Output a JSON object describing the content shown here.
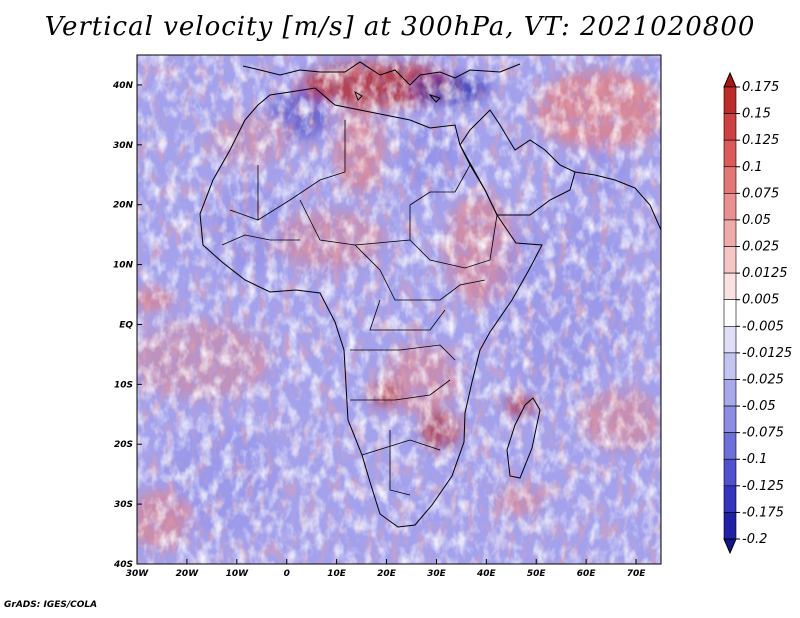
{
  "title": "Vertical velocity [m/s] at 300hPa, VT: 2021020800",
  "footer": "GrADS: IGES/COLA",
  "colors": {
    "strong_up": "#b52020",
    "up": "#e77a7a",
    "neutral": "#ffffff",
    "down": "#8c8ce8",
    "strong_down": "#2a28b0",
    "coast": "#000000"
  },
  "map": {
    "lon_range": [
      -30,
      75
    ],
    "lat_range": [
      -40,
      45
    ],
    "lat_ticks": [
      {
        "value": 40,
        "label": "40N"
      },
      {
        "value": 30,
        "label": "30N"
      },
      {
        "value": 20,
        "label": "20N"
      },
      {
        "value": 10,
        "label": "10N"
      },
      {
        "value": 0,
        "label": "EQ"
      },
      {
        "value": -10,
        "label": "10S"
      },
      {
        "value": -20,
        "label": "20S"
      },
      {
        "value": -30,
        "label": "30S"
      },
      {
        "value": -40,
        "label": "40S"
      }
    ],
    "lon_ticks": [
      {
        "value": -30,
        "label": "30W"
      },
      {
        "value": -20,
        "label": "20W"
      },
      {
        "value": -10,
        "label": "10W"
      },
      {
        "value": 0,
        "label": "0"
      },
      {
        "value": 10,
        "label": "10E"
      },
      {
        "value": 20,
        "label": "20E"
      },
      {
        "value": 30,
        "label": "30E"
      },
      {
        "value": 40,
        "label": "40E"
      },
      {
        "value": 50,
        "label": "50E"
      },
      {
        "value": 60,
        "label": "60E"
      },
      {
        "value": 70,
        "label": "70E"
      }
    ]
  },
  "colorbar": {
    "labels": [
      "0.175",
      "0.15",
      "0.125",
      "0.1",
      "0.075",
      "0.05",
      "0.025",
      "0.0125",
      "0.005",
      "-0.005",
      "-0.0125",
      "-0.025",
      "-0.05",
      "-0.075",
      "-0.1",
      "-0.125",
      "-0.175",
      "-0.2"
    ],
    "colors": [
      "#aa1414",
      "#c02a2a",
      "#d04040",
      "#dc5a5a",
      "#e47676",
      "#ea9090",
      "#f0aaaa",
      "#f6c6c6",
      "#fbe2e2",
      "#ffffff",
      "#dedef8",
      "#c4c4f2",
      "#a8a8ec",
      "#8c8ce4",
      "#6e6edc",
      "#5050d0",
      "#3434c0",
      "#2020a8",
      "#141490"
    ]
  }
}
